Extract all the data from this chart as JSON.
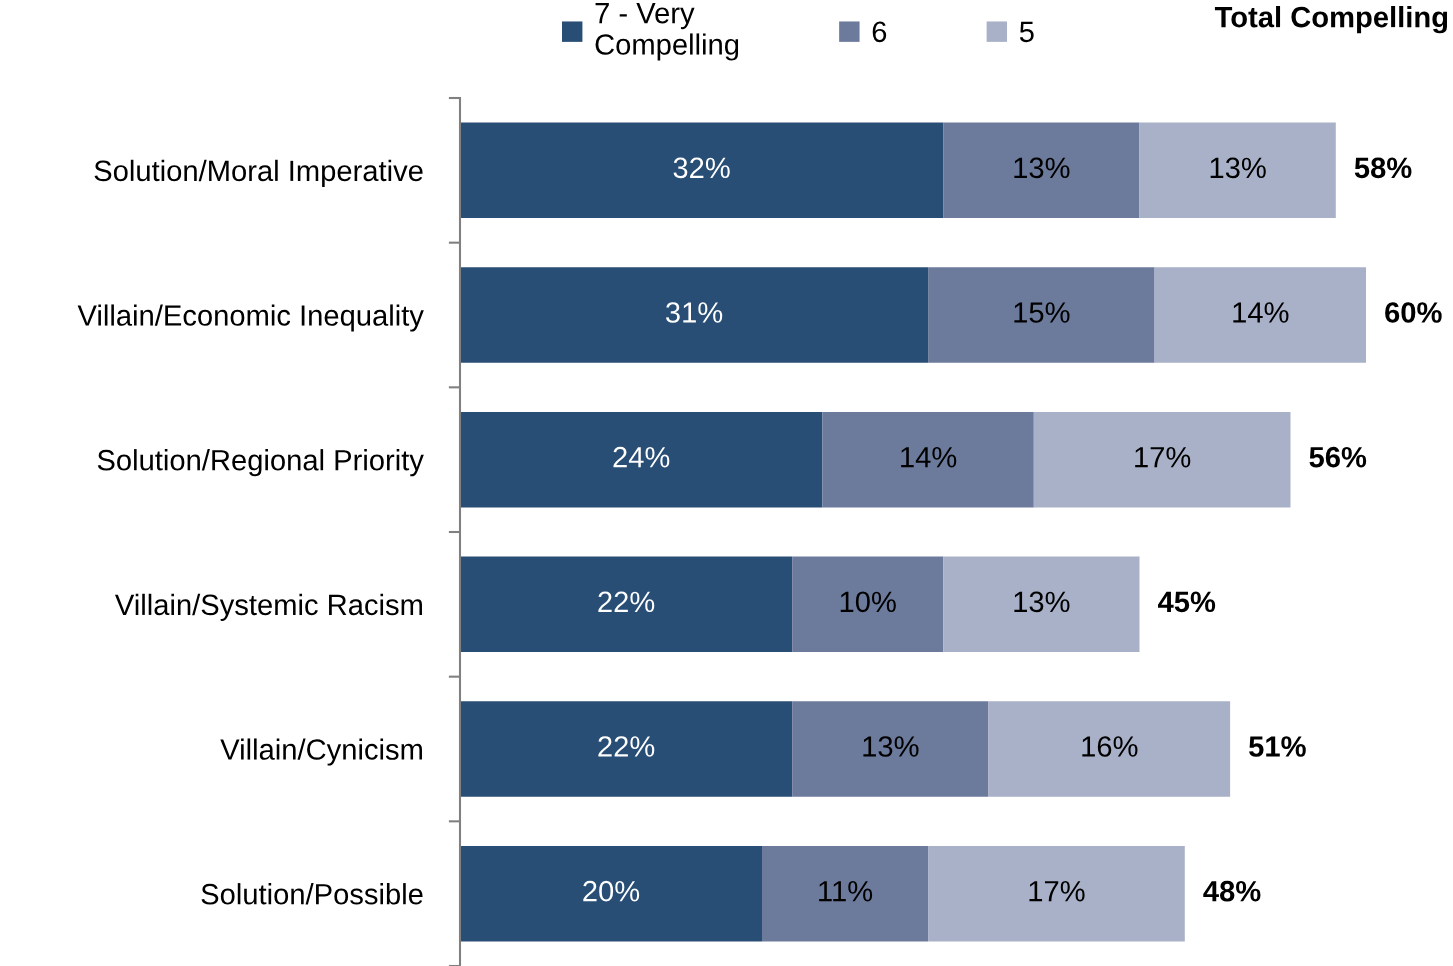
{
  "chart_data": {
    "type": "bar",
    "orientation": "horizontal",
    "stacked": true,
    "categories": [
      "Solution/Moral Imperative",
      "Villain/Economic Inequality",
      "Solution/Regional Priority",
      "Villain/Systemic Racism",
      "Villain/Cynicism",
      "Solution/Possible"
    ],
    "series": [
      {
        "name": "7 - Very Compelling",
        "color": "#284e76",
        "values": [
          32,
          31,
          24,
          22,
          22,
          20
        ],
        "value_labels": [
          "32%",
          "31%",
          "24%",
          "22%",
          "22%",
          "20%"
        ]
      },
      {
        "name": "6",
        "color": "#6c7a9c",
        "values": [
          13,
          15,
          14,
          10,
          13,
          11
        ],
        "value_labels": [
          "13%",
          "15%",
          "14%",
          "10%",
          "13%",
          "11%"
        ]
      },
      {
        "name": "5",
        "color": "#a9b1c8",
        "values": [
          13,
          14,
          17,
          13,
          16,
          17
        ],
        "value_labels": [
          "13%",
          "14%",
          "17%",
          "13%",
          "16%",
          "17%"
        ]
      }
    ],
    "totals": [
      "58%",
      "60%",
      "56%",
      "45%",
      "51%",
      "48%"
    ],
    "annotations": [
      "Total Compelling"
    ],
    "legend": "top",
    "grid": false,
    "tick_labels": "y"
  }
}
